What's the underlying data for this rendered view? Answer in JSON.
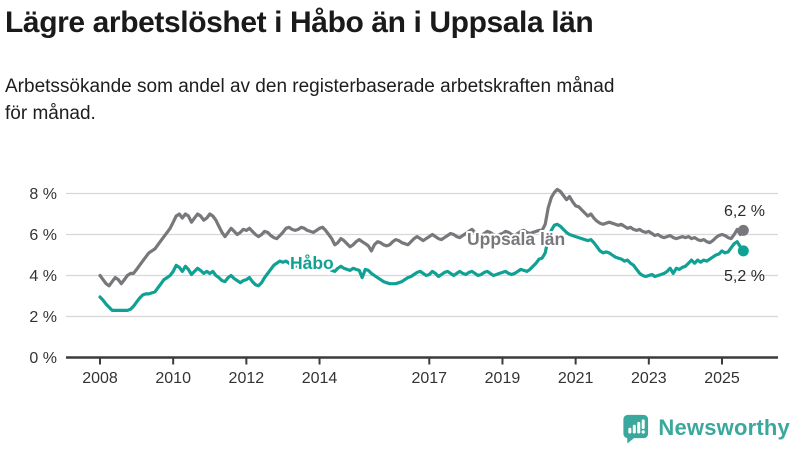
{
  "header": {
    "title": "Lägre arbetslöshet i Håbo än i Uppsala län",
    "subtitle": "Arbetssökande som andel av den registerbaserade arbetskraften månad för månad.",
    "subtitle_lines": [
      "Arbetssökande som andel av den registerbaserade arbetskraften månad",
      "för månad."
    ]
  },
  "branding": {
    "logo_text": "Newsworthy",
    "logo_icon": "bar-chart-speech-bubble-icon",
    "logo_color": "#3BA89D"
  },
  "colors": {
    "habo_teal": "#0FA294",
    "uppsala_gray": "#77787B",
    "grid": "#D8D8D8",
    "axis": "#3B3B3B",
    "text": "#333333"
  },
  "chart_data": {
    "type": "line",
    "title": "Lägre arbetslöshet i Håbo än i Uppsala län",
    "subtitle": "Arbetssökande som andel av den registerbaserade arbetskraften månad för månad.",
    "unit": "%",
    "frequency": "monthly",
    "x_start": "2008-01",
    "x_end": "2025-08",
    "ylim": [
      0,
      8
    ],
    "grid": "horizontal",
    "legend_position": "inline-labels",
    "y_ticks": [
      "0 %",
      "2 %",
      "4 %",
      "6 %",
      "8 %"
    ],
    "x_tick_years": [
      2008,
      2010,
      2012,
      2014,
      2017,
      2019,
      2021,
      2023,
      2025
    ],
    "x_tick_labels": [
      "2008",
      "2010",
      "2012",
      "2014",
      "2017",
      "2019",
      "2021",
      "2023",
      "2025"
    ],
    "series": [
      {
        "name": "Uppsala län",
        "color": "#77787B",
        "end_value": 6.2,
        "end_label": "6,2 %",
        "values": [
          4.0,
          3.8,
          3.6,
          3.5,
          3.7,
          3.9,
          3.8,
          3.6,
          3.8,
          4.0,
          4.1,
          4.1,
          4.3,
          4.5,
          4.7,
          4.9,
          5.1,
          5.2,
          5.3,
          5.5,
          5.7,
          5.9,
          6.1,
          6.3,
          6.6,
          6.9,
          7.0,
          6.8,
          7.0,
          6.9,
          6.6,
          6.8,
          7.0,
          6.9,
          6.7,
          6.8,
          7.0,
          6.9,
          6.7,
          6.4,
          6.1,
          5.9,
          6.1,
          6.3,
          6.15,
          6.0,
          6.1,
          6.25,
          6.2,
          6.3,
          6.15,
          6.0,
          5.9,
          6.0,
          6.15,
          6.1,
          5.95,
          5.85,
          5.8,
          5.95,
          6.1,
          6.3,
          6.35,
          6.25,
          6.2,
          6.25,
          6.35,
          6.3,
          6.2,
          6.15,
          6.1,
          6.2,
          6.3,
          6.35,
          6.2,
          6.0,
          5.8,
          5.5,
          5.6,
          5.8,
          5.7,
          5.55,
          5.4,
          5.5,
          5.65,
          5.75,
          5.65,
          5.55,
          5.45,
          5.2,
          5.5,
          5.65,
          5.6,
          5.5,
          5.45,
          5.5,
          5.65,
          5.75,
          5.7,
          5.6,
          5.55,
          5.5,
          5.65,
          5.8,
          5.9,
          5.8,
          5.7,
          5.8,
          5.9,
          6.0,
          5.9,
          5.8,
          5.75,
          5.85,
          5.95,
          6.05,
          6.0,
          5.9,
          5.85,
          5.95,
          6.05,
          6.15,
          6.25,
          6.1,
          6.0,
          5.95,
          6.05,
          6.15,
          6.1,
          6.0,
          5.95,
          6.0,
          6.05,
          6.15,
          6.1,
          6.0,
          5.95,
          6.05,
          6.15,
          6.2,
          6.1,
          6.05,
          6.1,
          6.15,
          6.2,
          6.2,
          6.5,
          7.3,
          7.8,
          8.05,
          8.2,
          8.1,
          7.9,
          7.7,
          7.85,
          7.6,
          7.4,
          7.35,
          7.2,
          7.05,
          6.9,
          7.0,
          6.8,
          6.65,
          6.55,
          6.5,
          6.55,
          6.6,
          6.55,
          6.5,
          6.45,
          6.5,
          6.4,
          6.3,
          6.35,
          6.25,
          6.2,
          6.25,
          6.15,
          6.1,
          6.15,
          6.05,
          5.95,
          6.0,
          5.9,
          5.85,
          5.9,
          5.95,
          5.85,
          5.8,
          5.85,
          5.9,
          5.85,
          5.9,
          5.8,
          5.85,
          5.75,
          5.7,
          5.75,
          5.65,
          5.6,
          5.7,
          5.85,
          5.95,
          6.0,
          5.95,
          5.85,
          5.8,
          6.0,
          6.25,
          6.0,
          6.2
        ]
      },
      {
        "name": "Håbo",
        "color": "#0FA294",
        "end_value": 5.2,
        "end_label": "5,2 %",
        "values": [
          2.95,
          2.8,
          2.6,
          2.45,
          2.3,
          2.3,
          2.3,
          2.3,
          2.3,
          2.3,
          2.35,
          2.5,
          2.7,
          2.9,
          3.05,
          3.1,
          3.1,
          3.15,
          3.2,
          3.4,
          3.6,
          3.8,
          3.9,
          4.0,
          4.2,
          4.5,
          4.4,
          4.2,
          4.45,
          4.3,
          4.05,
          4.2,
          4.35,
          4.25,
          4.1,
          4.2,
          4.1,
          4.2,
          4.0,
          3.9,
          3.75,
          3.7,
          3.9,
          4.0,
          3.85,
          3.75,
          3.65,
          3.75,
          3.8,
          3.9,
          3.7,
          3.55,
          3.5,
          3.65,
          3.9,
          4.1,
          4.3,
          4.5,
          4.6,
          4.7,
          4.65,
          4.7,
          4.6,
          4.5,
          4.45,
          4.5,
          4.6,
          4.55,
          4.45,
          4.4,
          4.35,
          4.45,
          4.5,
          4.55,
          4.45,
          4.35,
          4.25,
          4.2,
          4.35,
          4.45,
          4.35,
          4.3,
          4.25,
          4.35,
          4.3,
          4.25,
          3.9,
          4.3,
          4.25,
          4.1,
          4.0,
          3.9,
          3.8,
          3.7,
          3.65,
          3.6,
          3.6,
          3.6,
          3.65,
          3.7,
          3.8,
          3.9,
          3.95,
          4.05,
          4.15,
          4.2,
          4.1,
          4.0,
          4.05,
          4.2,
          4.1,
          3.95,
          4.05,
          4.15,
          4.2,
          4.1,
          4.0,
          4.1,
          4.2,
          4.1,
          4.05,
          4.15,
          4.2,
          4.1,
          4.0,
          4.05,
          4.15,
          4.2,
          4.1,
          4.0,
          4.05,
          4.1,
          4.15,
          4.2,
          4.1,
          4.05,
          4.1,
          4.2,
          4.3,
          4.25,
          4.2,
          4.3,
          4.45,
          4.6,
          4.8,
          4.85,
          5.1,
          5.8,
          6.2,
          6.45,
          6.5,
          6.4,
          6.25,
          6.1,
          6.0,
          5.95,
          5.9,
          5.85,
          5.8,
          5.75,
          5.7,
          5.75,
          5.6,
          5.4,
          5.2,
          5.1,
          5.15,
          5.1,
          5.0,
          4.9,
          4.85,
          4.8,
          4.7,
          4.75,
          4.6,
          4.5,
          4.3,
          4.1,
          4.0,
          3.95,
          4.0,
          4.05,
          3.95,
          4.0,
          4.05,
          4.1,
          4.2,
          4.35,
          4.1,
          4.35,
          4.3,
          4.4,
          4.45,
          4.6,
          4.75,
          4.6,
          4.75,
          4.65,
          4.75,
          4.7,
          4.8,
          4.9,
          5.0,
          5.05,
          5.2,
          5.1,
          5.15,
          5.35,
          5.55,
          5.65,
          5.4,
          5.2
        ]
      }
    ]
  }
}
